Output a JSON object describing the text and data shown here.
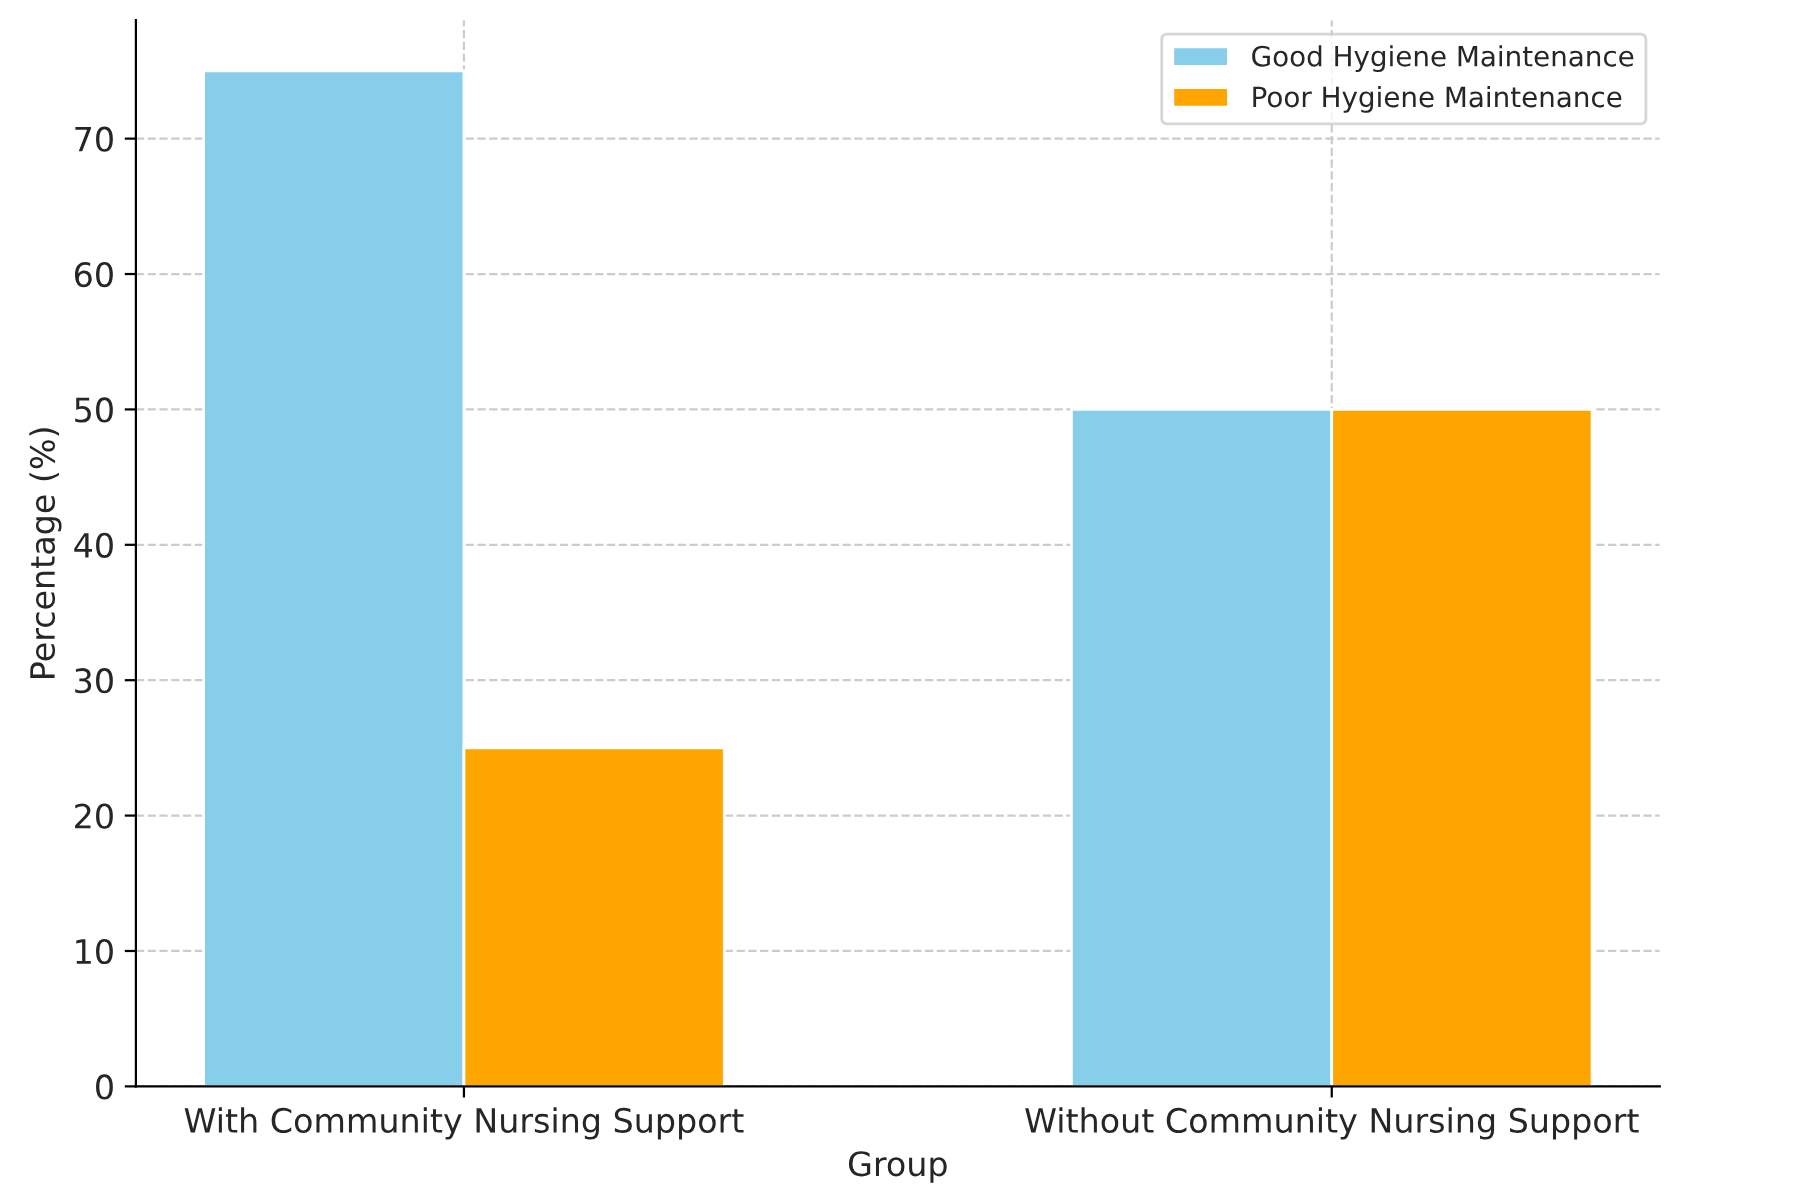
{
  "chart_data": {
    "type": "bar",
    "xlabel": "Group",
    "ylabel": "Percentage (%)",
    "categories": [
      "With Community Nursing Support",
      "Without Community Nursing Support"
    ],
    "series": [
      {
        "name": "Good Hygiene Maintenance",
        "color": "#87ceeb",
        "values": [
          75,
          50
        ]
      },
      {
        "name": "Poor Hygiene Maintenance",
        "color": "#ffa500",
        "values": [
          25,
          50
        ]
      }
    ],
    "ylim": [
      0,
      78.75
    ],
    "yticks": [
      0,
      10,
      20,
      30,
      40,
      50,
      60,
      70
    ],
    "grid": true,
    "legend": "top right"
  }
}
